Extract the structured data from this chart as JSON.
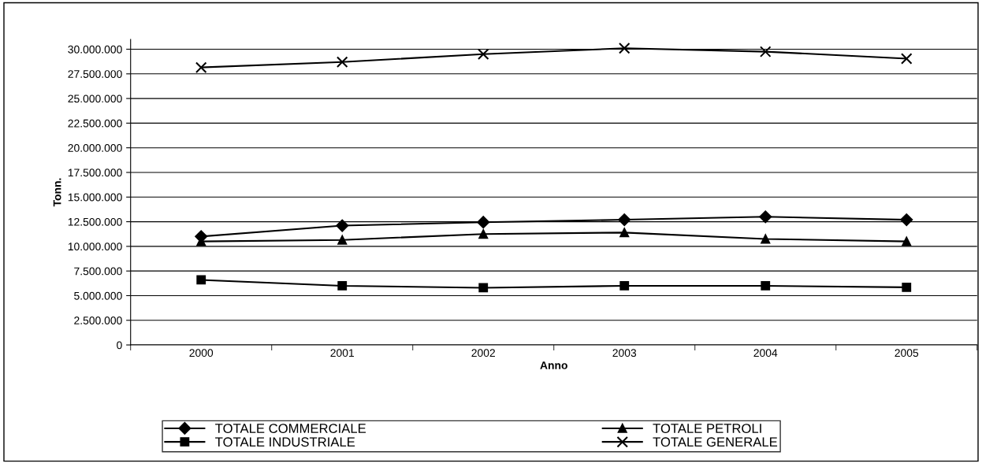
{
  "chart_data": {
    "type": "line",
    "xlabel": "Anno",
    "ylabel": "Tonn.",
    "categories": [
      "2000",
      "2001",
      "2002",
      "2003",
      "2004",
      "2005"
    ],
    "series": [
      {
        "name": "TOTALE COMMERCIALE",
        "color": "#000000",
        "marker": "diamond",
        "values": [
          11000000,
          12100000,
          12450000,
          12700000,
          13000000,
          12700000
        ]
      },
      {
        "name": "TOTALE INDUSTRIALE",
        "color": "#000000",
        "marker": "square",
        "values": [
          6600000,
          6000000,
          5800000,
          6000000,
          6000000,
          5850000
        ]
      },
      {
        "name": "TOTALE PETROLI",
        "color": "#000000",
        "marker": "triangle",
        "values": [
          10500000,
          10650000,
          11250000,
          11400000,
          10750000,
          10500000
        ]
      },
      {
        "name": "TOTALE GENERALE",
        "color": "#000000",
        "marker": "cross",
        "values": [
          28150000,
          28700000,
          29500000,
          30100000,
          29750000,
          29050000
        ]
      }
    ],
    "ylim": [
      0,
      31000000
    ],
    "yticks": [
      {
        "value": 0,
        "label": "0"
      },
      {
        "value": 2500000,
        "label": "2.500.000"
      },
      {
        "value": 5000000,
        "label": "5.000.000"
      },
      {
        "value": 7500000,
        "label": "7.500.000"
      },
      {
        "value": 10000000,
        "label": "10.000.000"
      },
      {
        "value": 12500000,
        "label": "12.500.000"
      },
      {
        "value": 15000000,
        "label": "15.000.000"
      },
      {
        "value": 17500000,
        "label": "17.500.000"
      },
      {
        "value": 20000000,
        "label": "20.000.000"
      },
      {
        "value": 22500000,
        "label": "22.500.000"
      },
      {
        "value": 25000000,
        "label": "25.000.000"
      },
      {
        "value": 27500000,
        "label": "27.500.000"
      },
      {
        "value": 30000000,
        "label": "30.000.000"
      }
    ],
    "grid": "y",
    "legend": "bottom",
    "line_style": "solid"
  }
}
